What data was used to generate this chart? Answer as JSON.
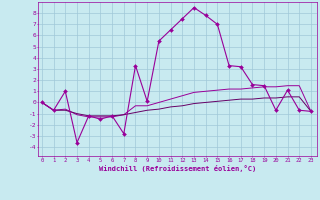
{
  "xlabel": "Windchill (Refroidissement éolien,°C)",
  "bg_color": "#c8eaf0",
  "grid_color": "#a0c8d8",
  "line_color": "#990099",
  "line_color2": "#660066",
  "x_ticks": [
    0,
    1,
    2,
    3,
    4,
    5,
    6,
    7,
    8,
    9,
    10,
    11,
    12,
    13,
    14,
    15,
    16,
    17,
    18,
    19,
    20,
    21,
    22,
    23
  ],
  "y_ticks": [
    -4,
    -3,
    -2,
    -1,
    0,
    1,
    2,
    3,
    4,
    5,
    6,
    7,
    8
  ],
  "ylim": [
    -4.8,
    9.0
  ],
  "xlim": [
    -0.3,
    23.5
  ],
  "series1": [
    0,
    -0.7,
    1.0,
    -3.6,
    -1.2,
    -1.5,
    -1.2,
    -2.8,
    3.3,
    0.1,
    5.5,
    6.5,
    7.5,
    8.5,
    7.8,
    7.0,
    3.3,
    3.2,
    1.6,
    1.5,
    -0.7,
    1.1,
    -0.7,
    -0.8
  ],
  "series2": [
    0,
    -0.7,
    -0.6,
    -1.1,
    -1.3,
    -1.3,
    -1.3,
    -1.1,
    -0.3,
    -0.3,
    0.0,
    0.3,
    0.6,
    0.9,
    1.0,
    1.1,
    1.2,
    1.2,
    1.3,
    1.4,
    1.4,
    1.5,
    1.5,
    -0.8
  ],
  "series3": [
    0,
    -0.7,
    -0.7,
    -1.0,
    -1.2,
    -1.2,
    -1.2,
    -1.1,
    -0.9,
    -0.7,
    -0.6,
    -0.4,
    -0.3,
    -0.1,
    0.0,
    0.1,
    0.2,
    0.3,
    0.3,
    0.4,
    0.4,
    0.5,
    0.5,
    -0.8
  ]
}
